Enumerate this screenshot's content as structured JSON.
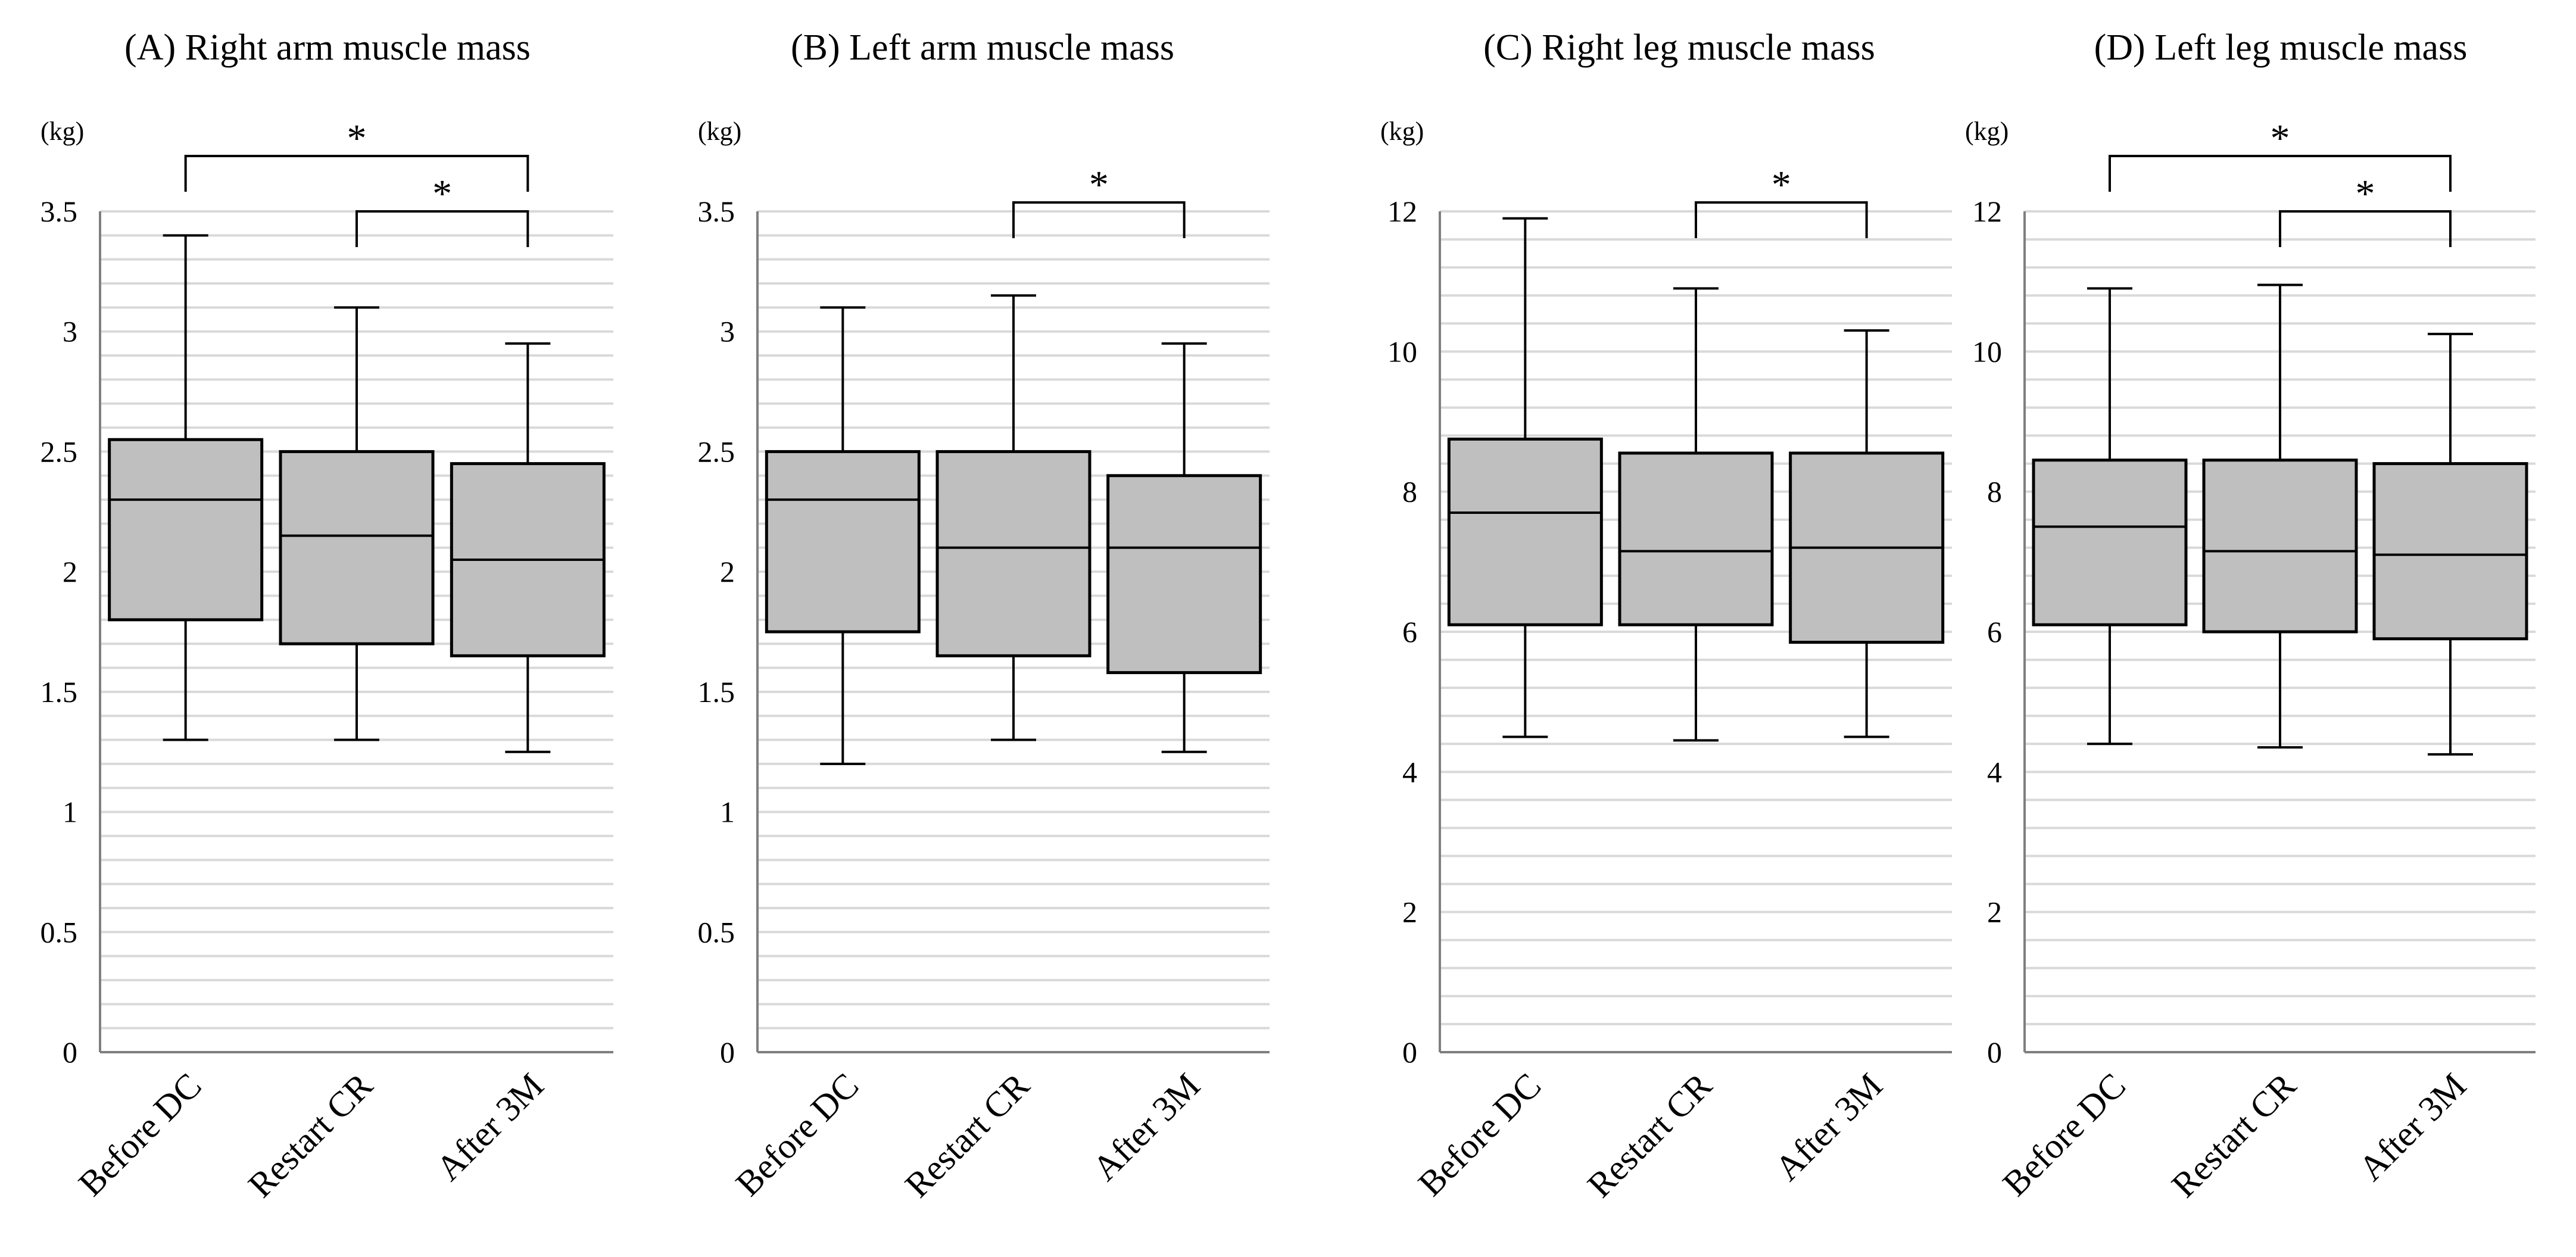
{
  "colors": {
    "box_fill": "#bfbfbf",
    "box_stroke": "#000000",
    "gridline": "#d9d9d9",
    "axis": "#7f7f7f",
    "background": "#ffffff"
  },
  "chart_data": [
    {
      "type": "boxplot",
      "title": "(A) Right arm muscle mass",
      "ylabel": "(kg)",
      "ylim": [
        0,
        3.5
      ],
      "yticks": [
        "0",
        "0.5",
        "1",
        "1.5",
        "2",
        "2.5",
        "3",
        "3.5"
      ],
      "ytick_values": [
        0,
        0.5,
        1,
        1.5,
        2,
        2.5,
        3,
        3.5
      ],
      "minor_step": 0.1,
      "grid": true,
      "categories": [
        "Before DC",
        "Restart CR",
        "After 3M"
      ],
      "boxes": [
        {
          "min": 1.3,
          "q1": 1.8,
          "median": 2.3,
          "q3": 2.55,
          "max": 3.4
        },
        {
          "min": 1.3,
          "q1": 1.7,
          "median": 2.15,
          "q3": 2.5,
          "max": 3.1
        },
        {
          "min": 1.25,
          "q1": 1.65,
          "median": 2.05,
          "q3": 2.45,
          "max": 2.95
        }
      ],
      "significance": [
        {
          "from": 0,
          "to": 2,
          "label": "*"
        },
        {
          "from": 1,
          "to": 2,
          "label": "*"
        }
      ]
    },
    {
      "type": "boxplot",
      "title": "(B) Left arm muscle mass",
      "ylabel": "(kg)",
      "ylim": [
        0,
        3.5
      ],
      "yticks": [
        "0",
        "0.5",
        "1",
        "1.5",
        "2",
        "2.5",
        "3",
        "3.5"
      ],
      "ytick_values": [
        0,
        0.5,
        1,
        1.5,
        2,
        2.5,
        3,
        3.5
      ],
      "minor_step": 0.1,
      "grid": true,
      "categories": [
        "Before DC",
        "Restart CR",
        "After 3M"
      ],
      "boxes": [
        {
          "min": 1.2,
          "q1": 1.75,
          "median": 2.3,
          "q3": 2.5,
          "max": 3.1
        },
        {
          "min": 1.3,
          "q1": 1.65,
          "median": 2.1,
          "q3": 2.5,
          "max": 3.15
        },
        {
          "min": 1.25,
          "q1": 1.58,
          "median": 2.1,
          "q3": 2.4,
          "max": 2.95
        }
      ],
      "significance": [
        {
          "from": 1,
          "to": 2,
          "label": "*"
        }
      ]
    },
    {
      "type": "boxplot",
      "title": "(C) Right leg muscle mass",
      "ylabel": "(kg)",
      "ylim": [
        0,
        12
      ],
      "yticks": [
        "0",
        "2",
        "4",
        "6",
        "8",
        "10",
        "12"
      ],
      "ytick_values": [
        0,
        2,
        4,
        6,
        8,
        10,
        12
      ],
      "minor_step": 0.4,
      "grid": true,
      "categories": [
        "Before DC",
        "Restart CR",
        "After 3M"
      ],
      "boxes": [
        {
          "min": 4.5,
          "q1": 6.1,
          "median": 7.7,
          "q3": 8.75,
          "max": 11.9
        },
        {
          "min": 4.45,
          "q1": 6.1,
          "median": 7.15,
          "q3": 8.55,
          "max": 10.9
        },
        {
          "min": 4.5,
          "q1": 5.85,
          "median": 7.2,
          "q3": 8.55,
          "max": 10.3
        }
      ],
      "significance": [
        {
          "from": 1,
          "to": 2,
          "label": "*"
        }
      ]
    },
    {
      "type": "boxplot",
      "title": "(D) Left leg muscle mass",
      "ylabel": "(kg)",
      "ylim": [
        0,
        12
      ],
      "yticks": [
        "0",
        "2",
        "4",
        "6",
        "8",
        "10",
        "12"
      ],
      "ytick_values": [
        0,
        2,
        4,
        6,
        8,
        10,
        12
      ],
      "minor_step": 0.4,
      "grid": true,
      "categories": [
        "Before DC",
        "Restart CR",
        "After 3M"
      ],
      "boxes": [
        {
          "min": 4.4,
          "q1": 6.1,
          "median": 7.5,
          "q3": 8.45,
          "max": 10.9
        },
        {
          "min": 4.35,
          "q1": 6.0,
          "median": 7.15,
          "q3": 8.45,
          "max": 10.95
        },
        {
          "min": 4.25,
          "q1": 5.9,
          "median": 7.1,
          "q3": 8.4,
          "max": 10.25
        }
      ],
      "significance": [
        {
          "from": 0,
          "to": 2,
          "label": "*"
        },
        {
          "from": 1,
          "to": 2,
          "label": "*"
        }
      ]
    }
  ]
}
